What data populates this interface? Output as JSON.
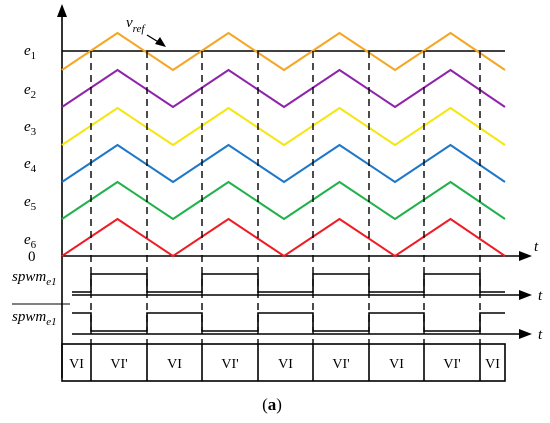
{
  "figure": {
    "caption_open": "(",
    "caption_letter": "a",
    "caption_close": ")"
  },
  "axes": {
    "time_label": "t",
    "zero_label": "0"
  },
  "reference": {
    "symbol": "v",
    "subscript": "ref"
  },
  "carrier_labels": [
    {
      "base": "e",
      "sub": "1"
    },
    {
      "base": "e",
      "sub": "2"
    },
    {
      "base": "e",
      "sub": "3"
    },
    {
      "base": "e",
      "sub": "4"
    },
    {
      "base": "e",
      "sub": "5"
    },
    {
      "base": "e",
      "sub": "6"
    }
  ],
  "carrier_colors": [
    "#f5a623",
    "#8e24aa",
    "#f5e60f",
    "#1f77c8",
    "#22b14c",
    "#ee1c25"
  ],
  "signals": {
    "spwm": {
      "base": "spwm",
      "sub": "e1"
    },
    "spwm_bar": {
      "base": "spwm",
      "sub": "e1"
    }
  },
  "segment_labels": [
    "VI",
    "VI'",
    "VI",
    "VI'",
    "VI",
    "VI'",
    "VI",
    "VI'",
    "VI"
  ]
}
